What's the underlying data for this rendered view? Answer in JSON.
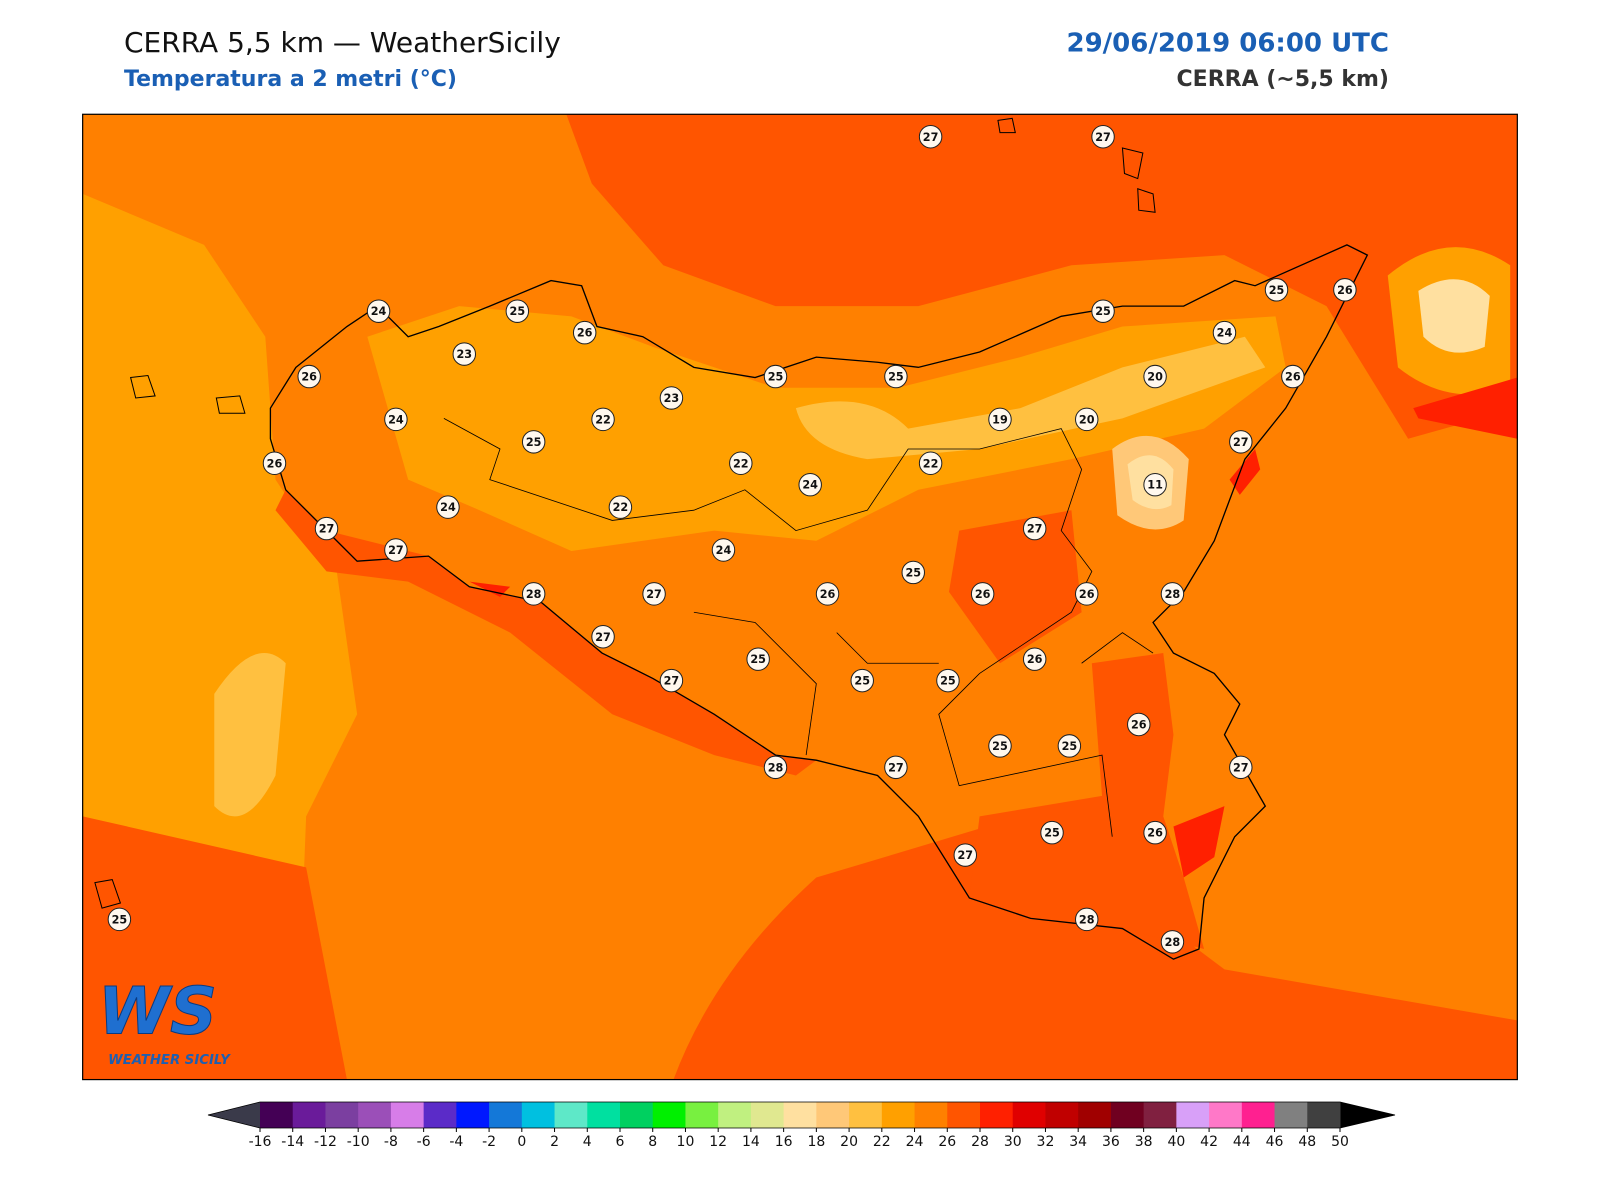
{
  "header": {
    "title": "CERRA 5,5 km — WeatherSicily",
    "subtitle": "Temperatura a 2 metri (°C)",
    "datetime": "29/06/2019 06:00 UTC",
    "model": "CERRA (~5,5 km)"
  },
  "map": {
    "stations": [
      27,
      27,
      24,
      25,
      26,
      23,
      26,
      24,
      25,
      22,
      23,
      25,
      25,
      25,
      25,
      26,
      24,
      20,
      26,
      19,
      20,
      27,
      26,
      22,
      22,
      11,
      24,
      24,
      22,
      27,
      27,
      27,
      24,
      25,
      28,
      27,
      26,
      26,
      26,
      28,
      27,
      25,
      26,
      27,
      25,
      25,
      26,
      25,
      25,
      28,
      27,
      27,
      25,
      26,
      27,
      28,
      28,
      25
    ]
  },
  "colorbar": {
    "ticks": [
      -16,
      -14,
      -12,
      -10,
      -8,
      -6,
      -4,
      -2,
      0,
      2,
      4,
      6,
      8,
      10,
      12,
      14,
      16,
      18,
      20,
      22,
      24,
      26,
      28,
      30,
      32,
      34,
      36,
      38,
      40,
      42,
      44,
      46,
      48,
      50
    ],
    "colors": [
      "#440055",
      "#6a1b9a",
      "#7b3fa0",
      "#9b4fb8",
      "#d77de8",
      "#5b2bc8",
      "#0018ff",
      "#1478d8",
      "#00c0e0",
      "#5ee8c8",
      "#00e0a0",
      "#00d060",
      "#00f000",
      "#78f040",
      "#c0f080",
      "#e0e890",
      "#ffe0a0",
      "#ffc878",
      "#ffc040",
      "#ffa000",
      "#ff8000",
      "#ff5500",
      "#ff2000",
      "#e00000",
      "#c00000",
      "#a00000",
      "#700020",
      "#802040",
      "#d8a0f8",
      "#ff78c8",
      "#ff2090",
      "#808080",
      "#404040"
    ],
    "under_color": "#3a3a4a",
    "over_color": "#000000"
  },
  "logo": {
    "mark": "WS",
    "name": "WEATHER SICILY"
  }
}
